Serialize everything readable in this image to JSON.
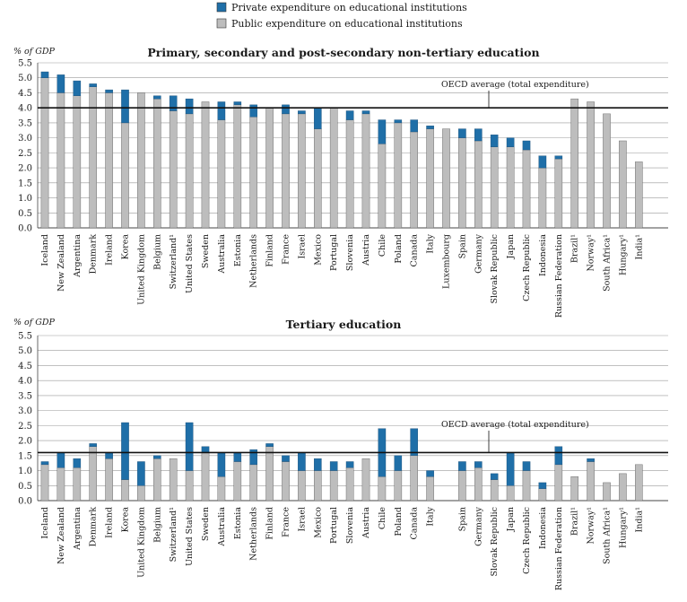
{
  "legend": {
    "private_label": "Private expenditure on educational institutions",
    "public_label": "Public expenditure on educational institutions",
    "private_color": "#1f6fa8",
    "public_color": "#bdbdbd"
  },
  "chart_data": [
    {
      "type": "bar",
      "stacked": true,
      "title": "Primary, secondary and post-secondary non-tertiary education",
      "ylabel": "% of GDP",
      "ylim": [
        0,
        5.5
      ],
      "yticks": [
        "0.0",
        "0.5",
        "1.0",
        "1.5",
        "2.0",
        "2.5",
        "3.0",
        "3.5",
        "4.0",
        "4.5",
        "5.0",
        "5.5"
      ],
      "grid": true,
      "oecd_average": 4.0,
      "oecd_label": "OECD average (total expenditure)",
      "categories": [
        "Iceland",
        "New Zealand",
        "Argentina",
        "Denmark",
        "Ireland",
        "Korea",
        "United Kingdom",
        "Belgium",
        "Switzerland¹",
        "United States",
        "Sweden",
        "Australia",
        "Estonia",
        "Netherlands",
        "Finland",
        "France",
        "Israel",
        "Mexico",
        "Portugal",
        "Slovenia",
        "Austria",
        "Chile",
        "Poland",
        "Canada",
        "Italy",
        "Luxembourg",
        "Spain",
        "Germany",
        "Slovak Republic",
        "Japan",
        "Czech Republic",
        "Indonesia",
        "Russian Federation",
        "Brazil¹",
        "Norway¹",
        "South Africa¹",
        "Hungary¹",
        "India¹"
      ],
      "series": [
        {
          "name": "Public expenditure on educational institutions",
          "values": [
            5.0,
            4.5,
            4.4,
            4.7,
            4.5,
            3.5,
            4.5,
            4.3,
            3.9,
            3.8,
            4.2,
            3.6,
            4.1,
            3.7,
            4.0,
            3.8,
            3.8,
            3.3,
            4.0,
            3.6,
            3.8,
            2.8,
            3.5,
            3.2,
            3.3,
            3.3,
            3.0,
            2.9,
            2.7,
            2.7,
            2.6,
            2.0,
            2.3,
            4.3,
            4.2,
            3.8,
            2.9,
            2.2
          ]
        },
        {
          "name": "Private expenditure on educational institutions",
          "values": [
            0.2,
            0.6,
            0.5,
            0.1,
            0.1,
            1.1,
            0.0,
            0.1,
            0.5,
            0.5,
            0.0,
            0.6,
            0.1,
            0.4,
            0.0,
            0.3,
            0.1,
            0.7,
            0.0,
            0.3,
            0.1,
            0.8,
            0.1,
            0.4,
            0.1,
            0.0,
            0.3,
            0.4,
            0.4,
            0.3,
            0.3,
            0.4,
            0.1,
            0.0,
            0.0,
            0.0,
            0.0,
            0.0
          ]
        }
      ]
    },
    {
      "type": "bar",
      "stacked": true,
      "title": "Tertiary education",
      "ylabel": "% of GDP",
      "ylim": [
        0,
        5.5
      ],
      "yticks": [
        "0.0",
        "0.5",
        "1.0",
        "1.5",
        "2.0",
        "2.5",
        "3.0",
        "3.5",
        "4.0",
        "4.5",
        "5.0",
        "5.5"
      ],
      "grid": true,
      "oecd_average": 1.6,
      "oecd_label": "OECD average (total expenditure)",
      "categories": [
        "Iceland",
        "New Zealand",
        "Argentina",
        "Denmark",
        "Ireland",
        "Korea",
        "United Kingdom",
        "Belgium",
        "Switzerland¹",
        "United States",
        "Sweden",
        "Australia",
        "Estonia",
        "Netherlands",
        "Finland",
        "France",
        "Israel",
        "Mexico",
        "Portugal",
        "Slovenia",
        "Austria",
        "Chile",
        "Poland",
        "Canada",
        "Italy",
        "",
        "Spain",
        "Germany",
        "Slovak Republic",
        "Japan",
        "Czech Republic",
        "Indonesia",
        "Russian Federation",
        "Brazil¹",
        "Norway¹",
        "South Africa¹",
        "Hungary¹",
        "India¹"
      ],
      "series": [
        {
          "name": "Public expenditure on educational institutions",
          "values": [
            1.2,
            1.1,
            1.1,
            1.8,
            1.4,
            0.7,
            0.5,
            1.4,
            1.4,
            1.0,
            1.6,
            0.8,
            1.3,
            1.2,
            1.8,
            1.3,
            1.0,
            1.0,
            1.0,
            1.1,
            1.4,
            0.8,
            1.0,
            1.5,
            0.8,
            null,
            1.0,
            1.1,
            0.7,
            0.5,
            1.0,
            0.4,
            1.2,
            0.8,
            1.3,
            0.6,
            0.9,
            1.2
          ]
        },
        {
          "name": "Private expenditure on educational institutions",
          "values": [
            0.1,
            0.5,
            0.3,
            0.1,
            0.2,
            1.9,
            0.8,
            0.1,
            0.0,
            1.6,
            0.2,
            0.8,
            0.3,
            0.5,
            0.1,
            0.2,
            0.6,
            0.4,
            0.3,
            0.2,
            0.0,
            1.6,
            0.5,
            0.9,
            0.2,
            null,
            0.3,
            0.2,
            0.2,
            1.1,
            0.3,
            0.2,
            0.6,
            0.0,
            0.1,
            0.0,
            0.0,
            0.0
          ]
        }
      ]
    }
  ]
}
